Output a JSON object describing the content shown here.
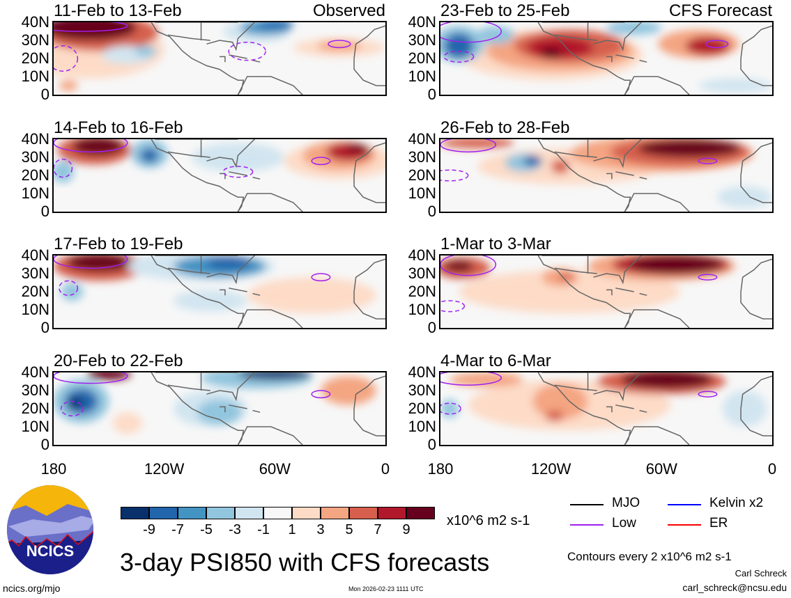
{
  "panels": [
    {
      "title": "11-Feb to 13-Feb",
      "label": "Observed"
    },
    {
      "title": "23-Feb to 25-Feb",
      "label": "CFS Forecast"
    },
    {
      "title": "14-Feb to 16-Feb",
      "label": ""
    },
    {
      "title": "26-Feb to 28-Feb",
      "label": ""
    },
    {
      "title": "17-Feb to 19-Feb",
      "label": ""
    },
    {
      "title": "1-Mar to 3-Mar",
      "label": ""
    },
    {
      "title": "20-Feb to 22-Feb",
      "label": ""
    },
    {
      "title": "4-Mar to 6-Mar",
      "label": ""
    }
  ],
  "y_ticks": [
    "40N",
    "30N",
    "20N",
    "10N",
    "0"
  ],
  "x_ticks": [
    "180",
    "120W",
    "60W",
    "0"
  ],
  "colorbar": {
    "colors": [
      "#08306b",
      "#2166ac",
      "#4393c3",
      "#92c5de",
      "#d1e5f0",
      "#f7f7f7",
      "#fddbc7",
      "#f4a582",
      "#d6604d",
      "#b2182b",
      "#67001f"
    ],
    "ticks": [
      "-9",
      "-7",
      "-5",
      "-3",
      "-1",
      "1",
      "3",
      "5",
      "7",
      "9"
    ],
    "units": "x10^6 m2 s-1"
  },
  "legend": {
    "items": [
      {
        "label": "MJO",
        "color": "#000000"
      },
      {
        "label": "Kelvin x2",
        "color": "#0000ff"
      },
      {
        "label": "Low",
        "color": "#a020f0"
      },
      {
        "label": "ER",
        "color": "#ff0000"
      }
    ],
    "contour_note": "Contours every 2 x10^6 m2 s-1"
  },
  "logo_text": "NCICS",
  "main_title": "3-day PSI850 with CFS forecasts",
  "footer": {
    "url": "ncics.org/mjo",
    "timestamp": "Mon 2026-02-23 1111 UTC",
    "author": "Carl Schreck",
    "email": "carl_schreck@ncsu.edu"
  }
}
